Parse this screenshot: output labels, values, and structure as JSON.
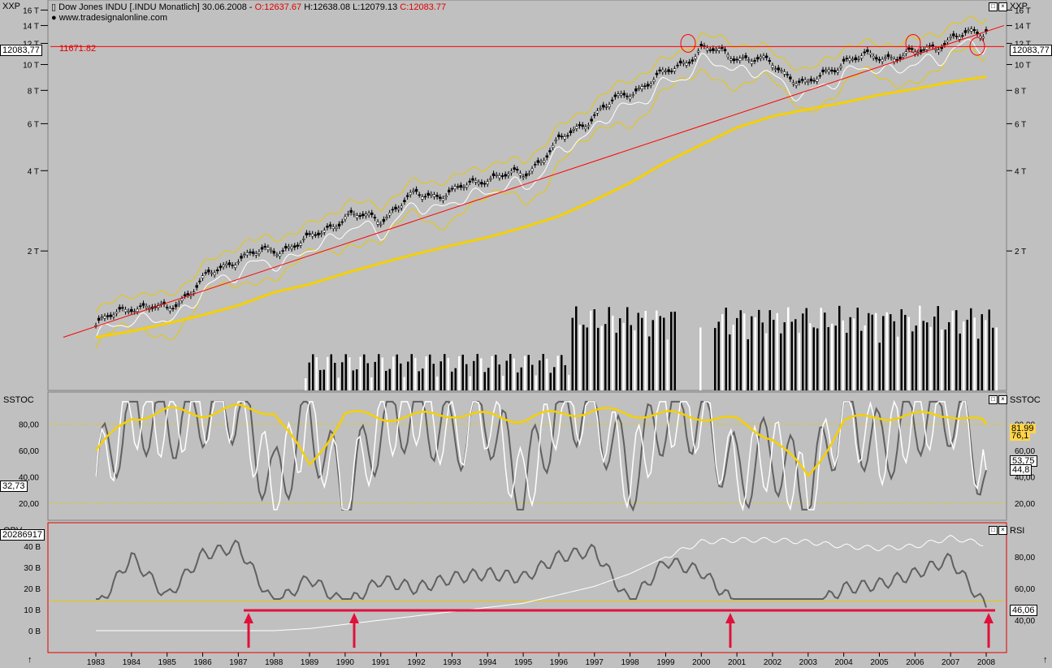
{
  "header": {
    "symbol_label": "XXP",
    "symbol_label_right": "XXP",
    "title": "Dow Jones INDU [.INDU  Monatlich] 30.06.2008 - ",
    "o": "O:12637.67",
    "h": "H:12638.08",
    "l": "L:12079.13",
    "c": "C:12083.77",
    "site": "www.tradesignalonline.com"
  },
  "panels": {
    "price": {
      "y_ticks": [
        "16 T",
        "14 T",
        "12 T",
        "10 T",
        "8 T",
        "6 T",
        "4 T",
        "2 T"
      ],
      "current_value_left": "12083,77",
      "current_value_right": "12083,77",
      "hline_label": "11671.82"
    },
    "sstoc": {
      "title": "SSTOC",
      "title_right": "SSTOC",
      "y_ticks_left": [
        "80,00",
        "60,00",
        "40,00",
        "20,00"
      ],
      "y_ticks_right": [
        "80,00",
        "60,00",
        "40,00",
        "20,00"
      ],
      "value_left": "32,73",
      "values_right": [
        "81,99",
        "76,1",
        "53,75",
        "44,8"
      ]
    },
    "obv": {
      "title": "OBV",
      "title_right": "RSI",
      "y_ticks_left": [
        "40 B",
        "30 B",
        "20 B",
        "10 B",
        "0 B"
      ],
      "y_ticks_right": [
        "80,00",
        "60,00",
        "40,00"
      ],
      "value_left": "20286917",
      "value_right": "46,06"
    }
  },
  "x_axis": {
    "years": [
      "1983",
      "1984",
      "1985",
      "1986",
      "1987",
      "1988",
      "1989",
      "1990",
      "1991",
      "1992",
      "1993",
      "1994",
      "1995",
      "1996",
      "1997",
      "1998",
      "1999",
      "2000",
      "2001",
      "2002",
      "2003",
      "2004",
      "2005",
      "2006",
      "2007",
      "2008"
    ]
  },
  "colors": {
    "background": "#c0c0c0",
    "candles": "#000000",
    "ma_long": "#f5d000",
    "bollinger": "#e8c800",
    "white_line": "#ffffff",
    "trend_line": "#ff0000",
    "arrows": "#e0103a",
    "obv_line": "#606060"
  },
  "chart_data": [
    {
      "type": "line",
      "panel": "price",
      "title": "Dow Jones INDU [.INDU  Monatlich] 30.06.2008",
      "y_scale": "log",
      "ylim": [
        800,
        16500
      ],
      "x": [
        "1983",
        "1984",
        "1985",
        "1986",
        "1987",
        "1988",
        "1989",
        "1990",
        "1991",
        "1992",
        "1993",
        "1994",
        "1995",
        "1996",
        "1997",
        "1998",
        "1999",
        "2000",
        "2001",
        "2002",
        "2003",
        "2004",
        "2005",
        "2006",
        "2007",
        "2008"
      ],
      "series": [
        {
          "name": "close",
          "values": [
            1050,
            1250,
            1200,
            1550,
            1900,
            2000,
            2200,
            2700,
            2650,
            3250,
            3300,
            3800,
            3850,
            5100,
            6500,
            7900,
            9200,
            11400,
            10800,
            10000,
            8300,
            10400,
            10700,
            10900,
            12500,
            13300
          ]
        },
        {
          "name": "ma_long",
          "values": [
            950,
            1000,
            1070,
            1150,
            1250,
            1400,
            1500,
            1650,
            1800,
            1950,
            2100,
            2250,
            2450,
            2700,
            3100,
            3600,
            4300,
            5000,
            5800,
            6400,
            6800,
            7200,
            7700,
            8100,
            8600,
            9000
          ]
        }
      ],
      "annotations": [
        "11671.82"
      ]
    },
    {
      "type": "line",
      "panel": "sstoc",
      "ylim": [
        10,
        100
      ],
      "series": [
        {
          "name": "slow",
          "values": [
            60,
            85,
            90,
            88,
            92,
            90,
            48,
            88,
            85,
            86,
            88,
            86,
            84,
            88,
            90,
            88,
            87,
            86,
            82,
            70,
            40,
            82,
            86,
            86,
            88,
            80
          ]
        },
        {
          "name": "fast",
          "values": [
            40,
            90,
            80,
            92,
            95,
            30,
            85,
            22,
            80,
            92,
            70,
            88,
            30,
            94,
            92,
            40,
            90,
            85,
            40,
            60,
            25,
            92,
            60,
            85,
            92,
            45
          ]
        }
      ],
      "current_values": [
        "81,99",
        "76,1",
        "53,75",
        "44,8",
        "32,73"
      ]
    },
    {
      "type": "line",
      "panel": "obv",
      "ylim": [
        -5,
        45
      ],
      "series": [
        {
          "name": "OBV",
          "values": [
            10,
            35,
            16,
            36,
            40,
            12,
            25,
            12,
            24,
            20,
            25,
            27,
            25,
            35,
            38,
            13,
            33,
            28,
            12,
            6,
            10,
            20,
            22,
            27,
            34,
            11
          ]
        },
        {
          "name": "RSI",
          "values": [
            0,
            0,
            0,
            0,
            0,
            0,
            1,
            3,
            5,
            7,
            9,
            11,
            13,
            17,
            21,
            27,
            35,
            42,
            43,
            43,
            42,
            40,
            39,
            40,
            44,
            41
          ]
        }
      ],
      "current_values": [
        "20286917",
        "46,06"
      ]
    }
  ]
}
